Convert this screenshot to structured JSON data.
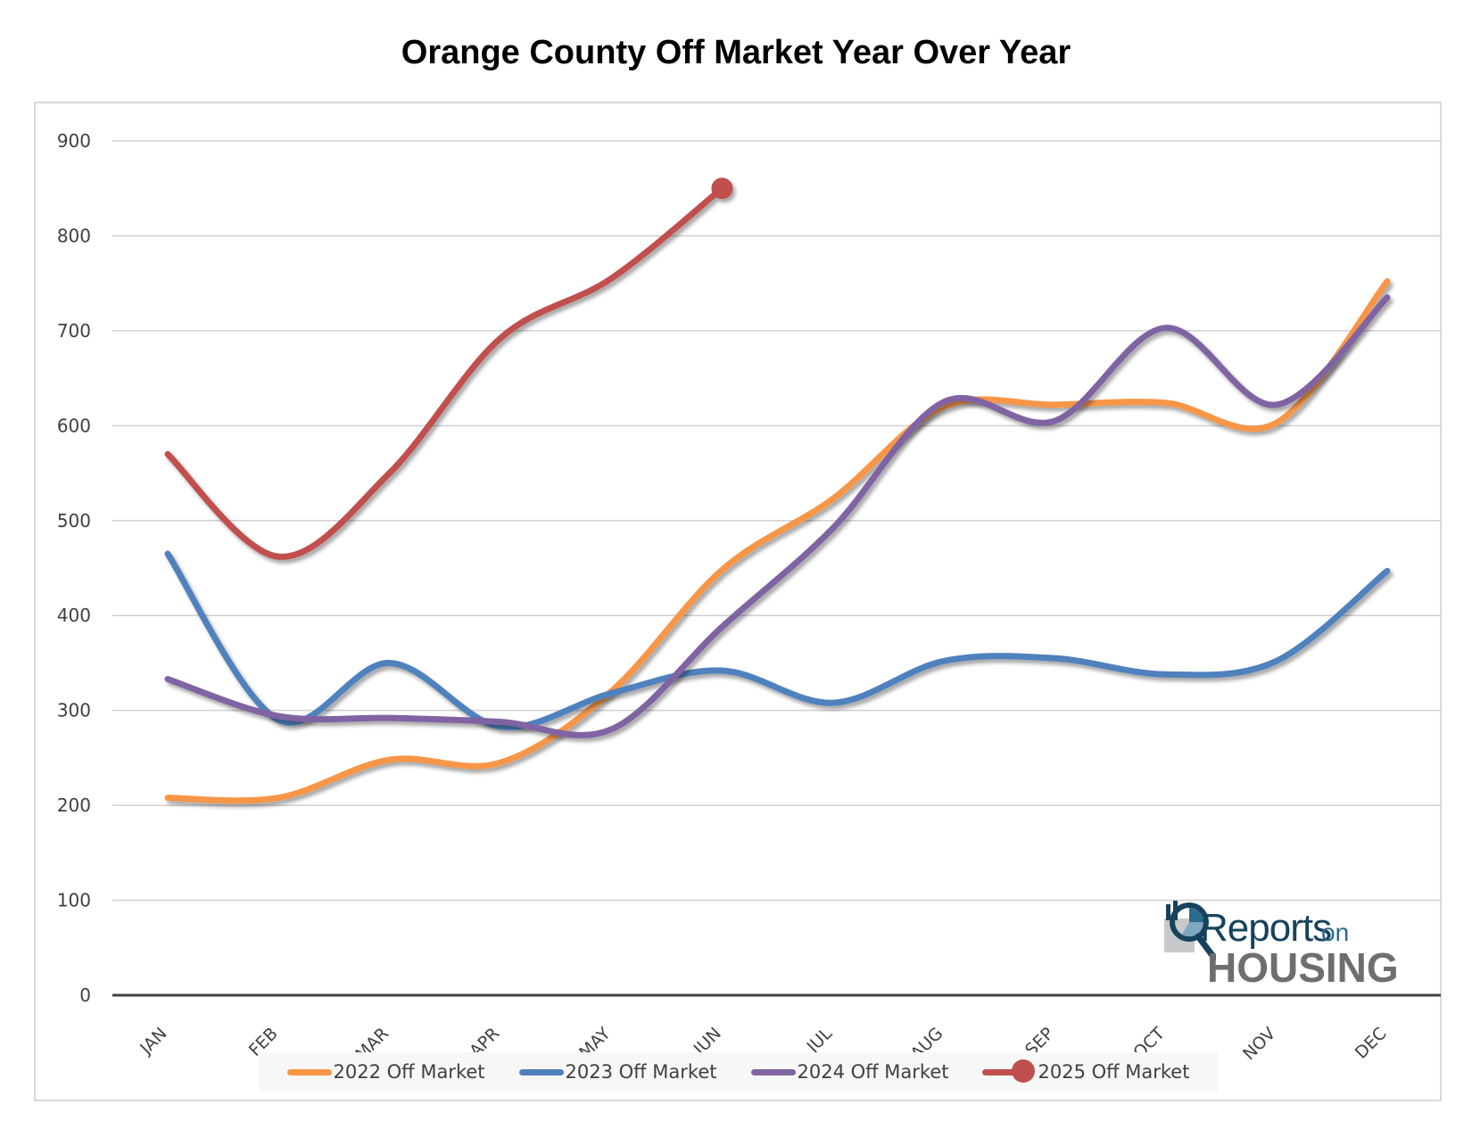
{
  "chart_data": {
    "type": "line",
    "title": "Orange County Off Market Year Over Year",
    "xlabel": "",
    "ylabel": "",
    "categories": [
      "JAN",
      "FEB",
      "MAR",
      "APR",
      "MAY",
      "JUN",
      "JUL",
      "AUG",
      "SEP",
      "OCT",
      "NOV",
      "DEC"
    ],
    "ylim": [
      0,
      900
    ],
    "yticks": [
      "0",
      "100",
      "200",
      "300",
      "400",
      "500",
      "600",
      "700",
      "800",
      "900"
    ],
    "ytick_values": [
      0,
      100,
      200,
      300,
      400,
      500,
      600,
      700,
      800,
      900
    ],
    "grid": true,
    "smooth": true,
    "legend_position": "bottom",
    "series": [
      {
        "name": "2022 Off Market",
        "color": "#f79646",
        "marker": false,
        "values": [
          208,
          208,
          248,
          245,
          320,
          448,
          523,
          620,
          622,
          624,
          603,
          752
        ]
      },
      {
        "name": "2023 Off Market",
        "color": "#4f81bd",
        "marker": false,
        "values": [
          465,
          290,
          350,
          283,
          318,
          342,
          308,
          352,
          355,
          338,
          352,
          447
        ]
      },
      {
        "name": "2024 Off Market",
        "color": "#8064a2",
        "marker": false,
        "values": [
          333,
          294,
          292,
          288,
          280,
          388,
          492,
          625,
          605,
          703,
          622,
          735
        ]
      },
      {
        "name": "2025 Off Market",
        "color": "#c0504d",
        "marker": "end",
        "values": [
          570,
          462,
          550,
          692,
          755,
          850,
          null,
          null,
          null,
          null,
          null,
          null
        ]
      }
    ]
  },
  "logo": {
    "line1": "Reports",
    "line1_suffix": "on",
    "line2": "HOUSING",
    "colors": {
      "primary": "#17425c",
      "secondary": "#6d6e71"
    }
  }
}
